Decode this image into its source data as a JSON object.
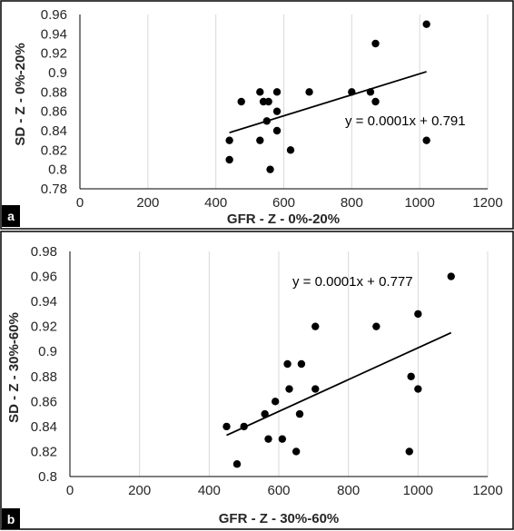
{
  "panels": [
    {
      "label": "a"
    },
    {
      "label": "b"
    }
  ],
  "chart_data": [
    {
      "type": "scatter",
      "xlabel": "GFR - Z - 0%-20%",
      "ylabel": "SD - Z - 0%-20%",
      "xlim": [
        0,
        1200
      ],
      "ylim": [
        0.78,
        0.96
      ],
      "x_ticks": [
        0,
        200,
        400,
        600,
        800,
        1000,
        1200
      ],
      "y_ticks": [
        "0.78",
        "0.8",
        "0.82",
        "0.84",
        "0.86",
        "0.88",
        "0.9",
        "0.92",
        "0.94",
        "0.96"
      ],
      "x_tick_labels": [
        "0",
        "200",
        "400",
        "600",
        "800",
        "1000",
        "1200"
      ],
      "grid": "vertical",
      "trendline": {
        "slope": 0.0001,
        "intercept": 0.791,
        "x_range": [
          440,
          1020
        ],
        "y_range": [
          0.838,
          0.901
        ]
      },
      "equation": "y = 0.0001x + 0.791",
      "points": [
        {
          "x": 440,
          "y": 0.83
        },
        {
          "x": 440,
          "y": 0.81
        },
        {
          "x": 475,
          "y": 0.87
        },
        {
          "x": 530,
          "y": 0.88
        },
        {
          "x": 530,
          "y": 0.83
        },
        {
          "x": 540,
          "y": 0.87
        },
        {
          "x": 550,
          "y": 0.85
        },
        {
          "x": 555,
          "y": 0.87
        },
        {
          "x": 560,
          "y": 0.8
        },
        {
          "x": 580,
          "y": 0.88
        },
        {
          "x": 580,
          "y": 0.86
        },
        {
          "x": 580,
          "y": 0.84
        },
        {
          "x": 620,
          "y": 0.82
        },
        {
          "x": 675,
          "y": 0.88
        },
        {
          "x": 800,
          "y": 0.88
        },
        {
          "x": 855,
          "y": 0.88
        },
        {
          "x": 870,
          "y": 0.93
        },
        {
          "x": 870,
          "y": 0.87
        },
        {
          "x": 1020,
          "y": 0.95
        },
        {
          "x": 1020,
          "y": 0.83
        }
      ]
    },
    {
      "type": "scatter",
      "xlabel": "GFR - Z - 30%-60%",
      "ylabel": "SD - Z - 30%-60%",
      "xlim": [
        0,
        1200
      ],
      "ylim": [
        0.8,
        0.98
      ],
      "x_ticks": [
        0,
        200,
        400,
        600,
        800,
        1000,
        1200
      ],
      "y_ticks": [
        "0.8",
        "0.82",
        "0.84",
        "0.86",
        "0.88",
        "0.9",
        "0.92",
        "0.94",
        "0.96",
        "0.98"
      ],
      "x_tick_labels": [
        "0",
        "200",
        "400",
        "600",
        "800",
        "1000",
        "1200"
      ],
      "grid": "vertical",
      "trendline": {
        "slope": 0.0001,
        "intercept": 0.777,
        "x_range": [
          450,
          1095
        ],
        "y_range": [
          0.833,
          0.915
        ]
      },
      "equation": "y = 0.0001x + 0.777",
      "points": [
        {
          "x": 450,
          "y": 0.84
        },
        {
          "x": 480,
          "y": 0.81
        },
        {
          "x": 500,
          "y": 0.84
        },
        {
          "x": 560,
          "y": 0.85
        },
        {
          "x": 570,
          "y": 0.83
        },
        {
          "x": 590,
          "y": 0.86
        },
        {
          "x": 610,
          "y": 0.83
        },
        {
          "x": 625,
          "y": 0.89
        },
        {
          "x": 630,
          "y": 0.87
        },
        {
          "x": 650,
          "y": 0.82
        },
        {
          "x": 660,
          "y": 0.85
        },
        {
          "x": 665,
          "y": 0.89
        },
        {
          "x": 705,
          "y": 0.92
        },
        {
          "x": 705,
          "y": 0.87
        },
        {
          "x": 880,
          "y": 0.92
        },
        {
          "x": 975,
          "y": 0.82
        },
        {
          "x": 980,
          "y": 0.88
        },
        {
          "x": 1000,
          "y": 0.93
        },
        {
          "x": 1000,
          "y": 0.87
        },
        {
          "x": 1095,
          "y": 0.96
        }
      ]
    }
  ],
  "style": {
    "point_color": "#000000",
    "grid_color": "#d9d9d9",
    "frame_color": "#000000",
    "label_box_color": "#000000"
  }
}
